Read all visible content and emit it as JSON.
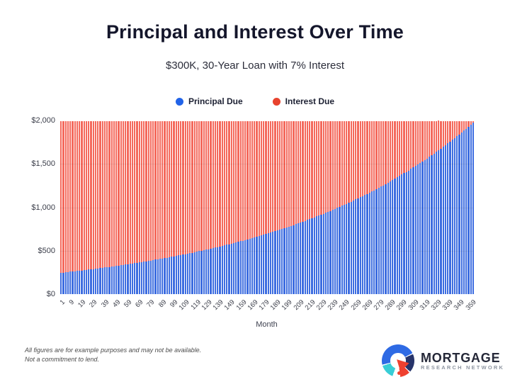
{
  "header": {
    "title": "Principal and Interest Over Time",
    "subtitle": "$300K, 30-Year Loan with 7% Interest"
  },
  "chart_data": {
    "type": "bar",
    "stacked": true,
    "title": "Principal and Interest Over Time",
    "subtitle": "$300K, 30-Year Loan with 7% Interest",
    "xlabel": "Month",
    "ylabel": "",
    "ylim": [
      0,
      2000
    ],
    "grid": "subtle-horizontal",
    "legend_position": "top",
    "monthly_payment": 1995.91,
    "y_tick_values": [
      0,
      500,
      1000,
      1500,
      2000
    ],
    "y_tick_labels": [
      "$0",
      "$500",
      "$1,000",
      "$1,500",
      "$2,000"
    ],
    "x_tick_labels": [
      "1",
      "9",
      "19",
      "29",
      "39",
      "49",
      "59",
      "69",
      "79",
      "89",
      "99",
      "109",
      "119",
      "129",
      "139",
      "149",
      "159",
      "169",
      "179",
      "189",
      "199",
      "209",
      "219",
      "229",
      "239",
      "249",
      "259",
      "269",
      "279",
      "289",
      "299",
      "309",
      "319",
      "329",
      "339",
      "349",
      "359"
    ],
    "x": [
      1,
      3,
      5,
      7,
      9,
      11,
      13,
      15,
      17,
      19,
      21,
      23,
      25,
      27,
      29,
      31,
      33,
      35,
      37,
      39,
      41,
      43,
      45,
      47,
      49,
      51,
      53,
      55,
      57,
      59,
      61,
      63,
      65,
      67,
      69,
      71,
      73,
      75,
      77,
      79,
      81,
      83,
      85,
      87,
      89,
      91,
      93,
      95,
      97,
      99,
      101,
      103,
      105,
      107,
      109,
      111,
      113,
      115,
      117,
      119,
      121,
      123,
      125,
      127,
      129,
      131,
      133,
      135,
      137,
      139,
      141,
      143,
      145,
      147,
      149,
      151,
      153,
      155,
      157,
      159,
      161,
      163,
      165,
      167,
      169,
      171,
      173,
      175,
      177,
      179,
      181,
      183,
      185,
      187,
      189,
      191,
      193,
      195,
      197,
      199,
      201,
      203,
      205,
      207,
      209,
      211,
      213,
      215,
      217,
      219,
      221,
      223,
      225,
      227,
      229,
      231,
      233,
      235,
      237,
      239,
      241,
      243,
      245,
      247,
      249,
      251,
      253,
      255,
      257,
      259,
      261,
      263,
      265,
      267,
      269,
      271,
      273,
      275,
      277,
      279,
      281,
      283,
      285,
      287,
      289,
      291,
      293,
      295,
      297,
      299,
      301,
      303,
      305,
      307,
      309,
      311,
      313,
      315,
      317,
      319,
      321,
      323,
      325,
      327,
      329,
      331,
      333,
      335,
      337,
      339,
      341,
      343,
      345,
      347,
      349,
      351,
      353,
      355,
      357,
      359
    ],
    "series": [
      {
        "name": "Principal Due",
        "bar_color": "#3d6de0",
        "dot_color": "#2163e8",
        "values": [
          246,
          249,
          252,
          255,
          258,
          261,
          264,
          267,
          270,
          273,
          276,
          279,
          283,
          286,
          289,
          293,
          296,
          300,
          303,
          307,
          310,
          314,
          318,
          321,
          325,
          329,
          333,
          337,
          341,
          345,
          349,
          353,
          357,
          361,
          365,
          369,
          374,
          378,
          383,
          387,
          392,
          396,
          401,
          406,
          410,
          415,
          420,
          425,
          430,
          435,
          440,
          445,
          450,
          456,
          461,
          466,
          472,
          477,
          483,
          488,
          494,
          500,
          506,
          512,
          518,
          524,
          530,
          536,
          542,
          549,
          555,
          562,
          568,
          575,
          582,
          588,
          595,
          602,
          609,
          616,
          624,
          631,
          638,
          646,
          653,
          661,
          669,
          677,
          685,
          692,
          701,
          709,
          717,
          725,
          734,
          743,
          751,
          760,
          769,
          778,
          787,
          796,
          806,
          815,
          824,
          834,
          844,
          854,
          864,
          874,
          884,
          894,
          905,
          916,
          926,
          937,
          948,
          959,
          970,
          982,
          993,
          1005,
          1017,
          1028,
          1040,
          1053,
          1065,
          1077,
          1090,
          1103,
          1116,
          1129,
          1142,
          1155,
          1169,
          1183,
          1196,
          1210,
          1225,
          1239,
          1253,
          1268,
          1283,
          1298,
          1313,
          1328,
          1344,
          1360,
          1376,
          1392,
          1408,
          1424,
          1441,
          1458,
          1475,
          1492,
          1510,
          1527,
          1545,
          1563,
          1582,
          1600,
          1619,
          1638,
          1657,
          1676,
          1696,
          1716,
          1736,
          1756,
          1777,
          1798,
          1819,
          1840,
          1861,
          1883,
          1905,
          1928,
          1950,
          1973
        ]
      },
      {
        "name": "Interest Due",
        "bar_color": "#f4695c",
        "dot_color": "#e8432e",
        "values": [
          1750,
          1747,
          1744,
          1741,
          1738,
          1735,
          1732,
          1729,
          1726,
          1723,
          1720,
          1717,
          1713,
          1710,
          1707,
          1703,
          1700,
          1696,
          1693,
          1689,
          1686,
          1682,
          1678,
          1675,
          1671,
          1667,
          1663,
          1659,
          1655,
          1651,
          1647,
          1643,
          1639,
          1635,
          1631,
          1627,
          1622,
          1618,
          1613,
          1609,
          1604,
          1600,
          1595,
          1590,
          1586,
          1581,
          1576,
          1571,
          1566,
          1561,
          1556,
          1551,
          1546,
          1540,
          1535,
          1530,
          1524,
          1519,
          1513,
          1508,
          1502,
          1496,
          1490,
          1484,
          1478,
          1472,
          1466,
          1460,
          1454,
          1447,
          1441,
          1434,
          1428,
          1421,
          1414,
          1408,
          1401,
          1394,
          1387,
          1380,
          1372,
          1365,
          1358,
          1350,
          1343,
          1335,
          1327,
          1319,
          1311,
          1304,
          1295,
          1287,
          1279,
          1271,
          1262,
          1253,
          1245,
          1236,
          1227,
          1218,
          1209,
          1200,
          1190,
          1181,
          1172,
          1162,
          1152,
          1142,
          1132,
          1122,
          1112,
          1102,
          1091,
          1080,
          1070,
          1059,
          1048,
          1037,
          1026,
          1014,
          1003,
          991,
          979,
          968,
          956,
          943,
          931,
          919,
          906,
          893,
          880,
          867,
          854,
          841,
          827,
          813,
          800,
          786,
          771,
          757,
          743,
          728,
          713,
          698,
          683,
          668,
          652,
          636,
          620,
          604,
          588,
          572,
          555,
          538,
          521,
          504,
          486,
          469,
          451,
          433,
          414,
          396,
          377,
          358,
          340,
          320,
          300,
          280,
          260,
          240,
          219,
          198,
          177,
          156,
          135,
          113,
          91,
          68,
          46,
          23
        ]
      }
    ]
  },
  "footer": {
    "disclaimer_line1": "All figures are for example purposes and may not be available.",
    "disclaimer_line2": "Not a commitment to lend.",
    "logo_name": "MORTGAGE",
    "logo_subname": "RESEARCH NETWORK"
  }
}
